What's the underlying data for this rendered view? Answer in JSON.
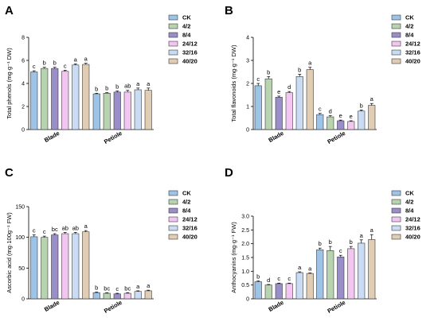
{
  "chart_data": [
    {
      "panel": "A",
      "type": "bar",
      "ylabel": "Total phenols (mg·g⁻¹ DW)",
      "ylim": [
        0,
        8
      ],
      "yticks": [
        0,
        2,
        4,
        6,
        8
      ],
      "categories": [
        "Blade",
        "Petiole"
      ],
      "series": [
        {
          "name": "CK",
          "values": [
            5.0,
            3.1
          ],
          "errors": [
            0.1,
            0.05
          ],
          "letters": [
            "c",
            "b"
          ]
        },
        {
          "name": "4/2",
          "values": [
            5.3,
            3.15
          ],
          "errors": [
            0.1,
            0.05
          ],
          "letters": [
            "b",
            "b"
          ]
        },
        {
          "name": "8/4",
          "values": [
            5.3,
            3.25
          ],
          "errors": [
            0.1,
            0.1
          ],
          "letters": [
            "b",
            "b"
          ]
        },
        {
          "name": "24/12",
          "values": [
            5.05,
            3.25
          ],
          "errors": [
            0.1,
            0.15
          ],
          "letters": [
            "c",
            "ab"
          ]
        },
        {
          "name": "32/16",
          "values": [
            5.6,
            3.45
          ],
          "errors": [
            0.1,
            0.15
          ],
          "letters": [
            "a",
            "a"
          ]
        },
        {
          "name": "40/20",
          "values": [
            5.65,
            3.4
          ],
          "errors": [
            0.1,
            0.2
          ],
          "letters": [
            "a",
            "a"
          ]
        }
      ]
    },
    {
      "panel": "B",
      "type": "bar",
      "ylabel": "Total flavonoids (mg·g⁻¹ DW)",
      "ylim": [
        0,
        4
      ],
      "yticks": [
        0,
        1,
        2,
        3,
        4
      ],
      "categories": [
        "Blade",
        "Petiole"
      ],
      "series": [
        {
          "name": "CK",
          "values": [
            1.9,
            0.65
          ],
          "errors": [
            0.1,
            0.05
          ],
          "letters": [
            "c",
            "c"
          ]
        },
        {
          "name": "4/2",
          "values": [
            2.2,
            0.55
          ],
          "errors": [
            0.1,
            0.05
          ],
          "letters": [
            "b",
            "d"
          ]
        },
        {
          "name": "8/4",
          "values": [
            1.4,
            0.38
          ],
          "errors": [
            0.05,
            0.03
          ],
          "letters": [
            "e",
            "e"
          ]
        },
        {
          "name": "24/12",
          "values": [
            1.6,
            0.35
          ],
          "errors": [
            0.05,
            0.03
          ],
          "letters": [
            "d",
            "e"
          ]
        },
        {
          "name": "32/16",
          "values": [
            2.3,
            0.8
          ],
          "errors": [
            0.1,
            0.05
          ],
          "letters": [
            "b",
            "b"
          ]
        },
        {
          "name": "40/20",
          "values": [
            2.6,
            1.05
          ],
          "errors": [
            0.1,
            0.08
          ],
          "letters": [
            "a",
            "a"
          ]
        }
      ]
    },
    {
      "panel": "C",
      "type": "bar",
      "ylabel": "Ascorbic acid (mg·100g⁻¹ FW)",
      "ylim": [
        0,
        150
      ],
      "yticks": [
        0,
        50,
        100,
        150
      ],
      "categories": [
        "Blade",
        "Petiole"
      ],
      "series": [
        {
          "name": "CK",
          "values": [
            101,
            10
          ],
          "errors": [
            3,
            1
          ],
          "letters": [
            "c",
            "b"
          ]
        },
        {
          "name": "4/2",
          "values": [
            100,
            9
          ],
          "errors": [
            2,
            1
          ],
          "letters": [
            "c",
            "bc"
          ]
        },
        {
          "name": "8/4",
          "values": [
            104,
            8
          ],
          "errors": [
            2,
            1
          ],
          "letters": [
            "bc",
            "c"
          ]
        },
        {
          "name": "24/12",
          "values": [
            106,
            9
          ],
          "errors": [
            2,
            1
          ],
          "letters": [
            "ab",
            "bc"
          ]
        },
        {
          "name": "32/16",
          "values": [
            106,
            12
          ],
          "errors": [
            2,
            1
          ],
          "letters": [
            "ab",
            "a"
          ]
        },
        {
          "name": "40/20",
          "values": [
            109,
            13
          ],
          "errors": [
            2,
            1
          ],
          "letters": [
            "a",
            "a"
          ]
        }
      ]
    },
    {
      "panel": "D",
      "type": "bar",
      "ylabel": "Anthocyanins (mg·g⁻¹ FW)",
      "ylim": [
        0,
        3
      ],
      "yticks": [
        0,
        0.5,
        1.0,
        1.5,
        2.0,
        2.5,
        3.0
      ],
      "ytick_labels": [
        "0",
        "0.5",
        "1.0",
        "1.5",
        "2.0",
        "2.5",
        "3.0"
      ],
      "categories": [
        "Blade",
        "Petiole"
      ],
      "series": [
        {
          "name": "CK",
          "values": [
            0.62,
            1.78
          ],
          "errors": [
            0.03,
            0.06
          ],
          "letters": [
            "b",
            "b"
          ]
        },
        {
          "name": "4/2",
          "values": [
            0.5,
            1.75
          ],
          "errors": [
            0.02,
            0.15
          ],
          "letters": [
            "d",
            "b"
          ]
        },
        {
          "name": "8/4",
          "values": [
            0.55,
            1.52
          ],
          "errors": [
            0.02,
            0.06
          ],
          "letters": [
            "c",
            "c"
          ]
        },
        {
          "name": "24/12",
          "values": [
            0.55,
            1.82
          ],
          "errors": [
            0.02,
            0.08
          ],
          "letters": [
            "c",
            "b"
          ]
        },
        {
          "name": "32/16",
          "values": [
            0.95,
            2.02
          ],
          "errors": [
            0.03,
            0.12
          ],
          "letters": [
            "a",
            "a"
          ]
        },
        {
          "name": "40/20",
          "values": [
            0.92,
            2.15
          ],
          "errors": [
            0.02,
            0.18
          ],
          "letters": [
            "a",
            "a"
          ]
        }
      ]
    }
  ],
  "colors": {
    "CK": "#9dc3e6",
    "4/2": "#b8d3b0",
    "8/4": "#9a8ec8",
    "24/12": "#f3c6f1",
    "32/16": "#c9dcf4",
    "40/20": "#e0cdb4",
    "bar_edge": "#3a3a3a",
    "axis": "#000000"
  }
}
